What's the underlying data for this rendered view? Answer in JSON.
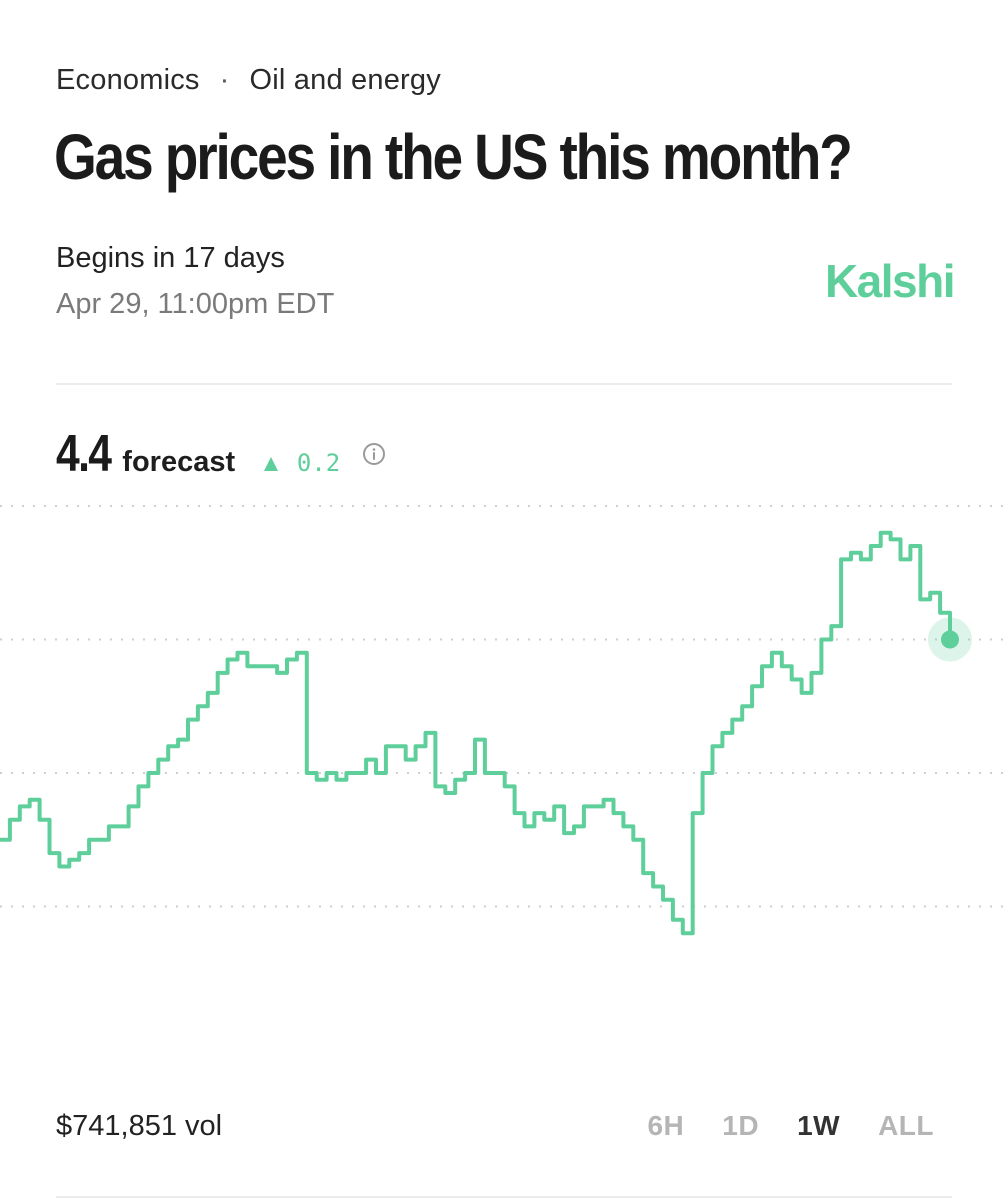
{
  "breadcrumb": {
    "category": "Economics",
    "separator": "·",
    "subcategory": "Oil and energy"
  },
  "title": "Gas prices in the US this month?",
  "schedule": {
    "begins": "Begins in 17 days",
    "date": "Apr 29, 11:00pm EDT"
  },
  "brand": "Kalshi",
  "forecast": {
    "value": "4.4",
    "label": "forecast",
    "arrow": "▲",
    "change": "0.2",
    "info_icon": "info-circle-icon"
  },
  "volume": "$741,851 vol",
  "time_ranges": [
    {
      "label": "6H",
      "active": false
    },
    {
      "label": "1D",
      "active": false
    },
    {
      "label": "1W",
      "active": true
    },
    {
      "label": "ALL",
      "active": false
    }
  ],
  "colors": {
    "accent": "#5ecf9a",
    "text": "#1c1c1c",
    "muted": "#7a7a7a",
    "inactive": "#b5b5b5"
  },
  "chart_data": {
    "type": "line",
    "title": "",
    "xlabel": "",
    "ylabel": "",
    "ylim": [
      3.8,
      4.6
    ],
    "gridlines": [
      4.0,
      4.2,
      4.4,
      4.6
    ],
    "grid": "dotted horizontal",
    "series": [
      {
        "values": [
          4.1,
          4.13,
          4.15,
          4.16,
          4.13,
          4.08,
          4.06,
          4.07,
          4.08,
          4.1,
          4.1,
          4.12,
          4.12,
          4.15,
          4.18,
          4.2,
          4.22,
          4.24,
          4.25,
          4.28,
          4.3,
          4.32,
          4.35,
          4.37,
          4.38,
          4.36,
          4.36,
          4.36,
          4.35,
          4.37,
          4.38,
          4.2,
          4.19,
          4.2,
          4.19,
          4.2,
          4.2,
          4.22,
          4.2,
          4.24,
          4.24,
          4.22,
          4.24,
          4.26,
          4.18,
          4.17,
          4.19,
          4.2,
          4.25,
          4.2,
          4.2,
          4.18,
          4.14,
          4.12,
          4.14,
          4.13,
          4.15,
          4.11,
          4.12,
          4.15,
          4.15,
          4.16,
          4.14,
          4.12,
          4.1,
          4.05,
          4.03,
          4.01,
          3.98,
          3.96,
          4.14,
          4.2,
          4.24,
          4.26,
          4.28,
          4.3,
          4.33,
          4.36,
          4.38,
          4.36,
          4.34,
          4.32,
          4.35,
          4.4,
          4.42,
          4.52,
          4.53,
          4.52,
          4.54,
          4.56,
          4.55,
          4.52,
          4.54,
          4.46,
          4.47,
          4.44,
          4.4
        ]
      }
    ]
  }
}
